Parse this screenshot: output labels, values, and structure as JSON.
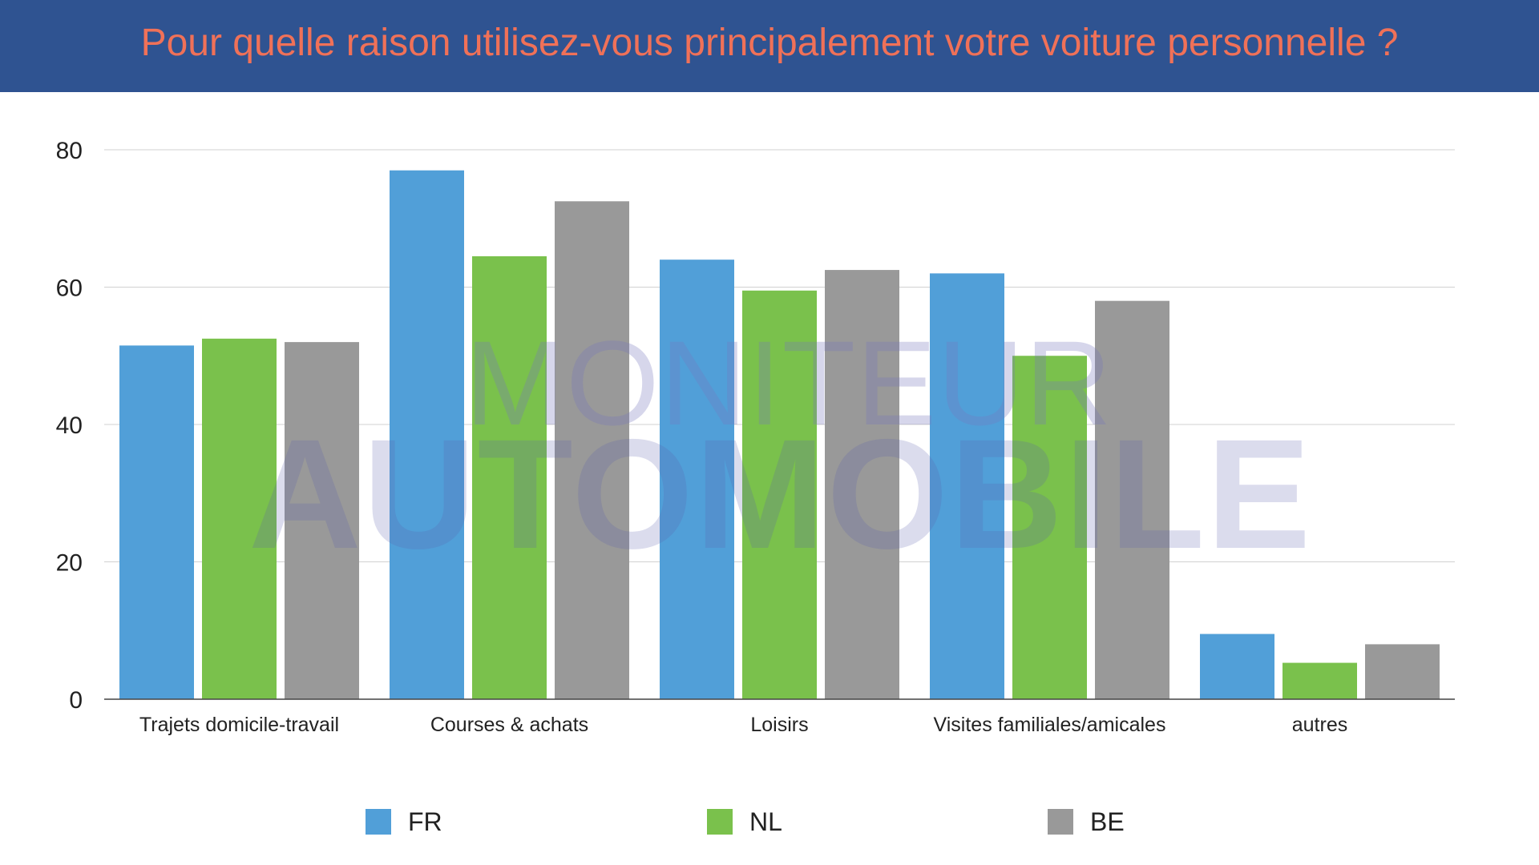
{
  "header": {
    "title": "Pour quelle raison utilisez-vous principalement votre voiture personnelle ?"
  },
  "watermark": {
    "line1": "MONITEUR",
    "line2": "AUTOMOBILE"
  },
  "chart_data": {
    "type": "bar",
    "title": "Pour quelle raison utilisez-vous principalement votre voiture personnelle ?",
    "xlabel": "",
    "ylabel": "",
    "ylim": [
      0,
      80
    ],
    "yticks": [
      0,
      20,
      40,
      60,
      80
    ],
    "grid": true,
    "legend_position": "bottom",
    "categories": [
      "Trajets domicile-travail",
      "Courses & achats",
      "Loisirs",
      "Visites familiales/amicales",
      "autres"
    ],
    "series": [
      {
        "name": "FR",
        "color": "#519fd8",
        "values": [
          51.5,
          77,
          64,
          62,
          9.5
        ]
      },
      {
        "name": "NL",
        "color": "#7ac14c",
        "values": [
          52.5,
          64.5,
          59.5,
          50,
          5.3
        ]
      },
      {
        "name": "BE",
        "color": "#999999",
        "values": [
          52,
          72.5,
          62.5,
          58,
          8
        ]
      }
    ]
  }
}
